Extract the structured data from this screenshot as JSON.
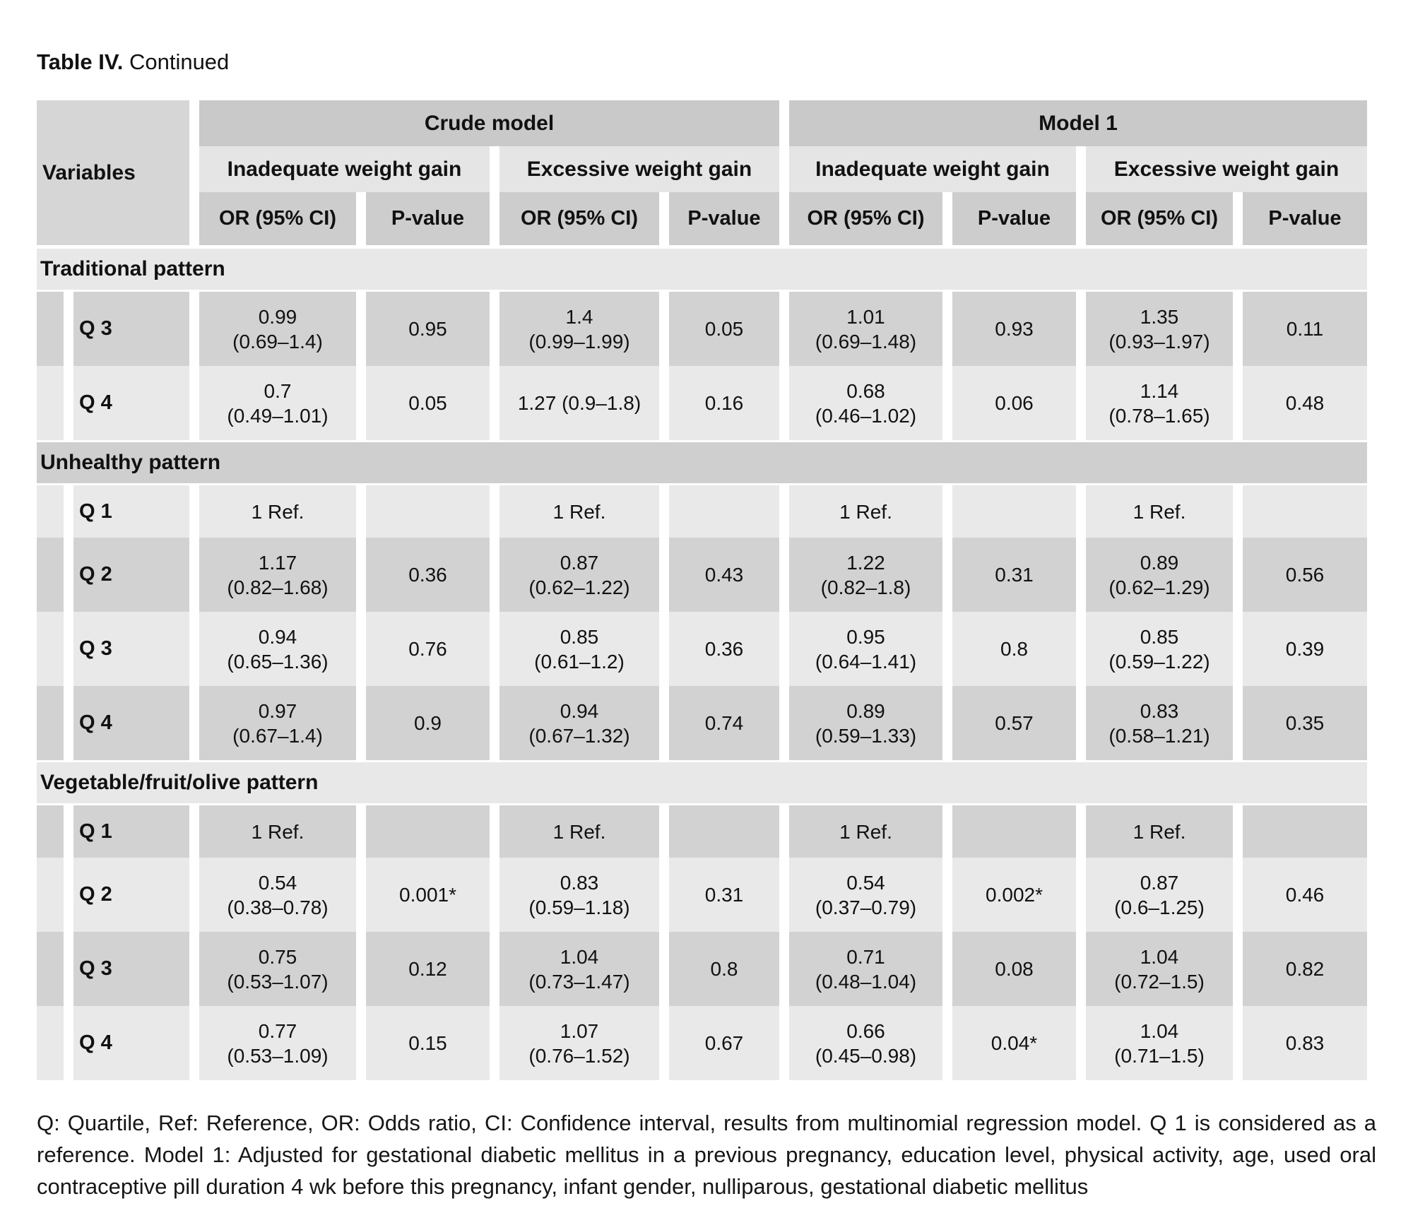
{
  "title": {
    "label": "Table IV.",
    "suffix": " Continued"
  },
  "header": {
    "variables": "Variables",
    "models": [
      "Crude model",
      "Model 1"
    ],
    "subgroups": [
      "Inadequate weight gain",
      "Excessive weight gain",
      "Inadequate weight gain",
      "Excessive weight gain"
    ],
    "measures": [
      "OR (95% CI)",
      "P-value",
      "OR (95% CI)",
      "P-value",
      "OR (95% CI)",
      "P-value",
      "OR (95% CI)",
      "P-value"
    ]
  },
  "sections": [
    {
      "label": "Traditional pattern",
      "shade": "light",
      "rows": [
        {
          "label": "Q 3",
          "shade": "dark",
          "cells": [
            "0.99\n(0.69–1.4)",
            "0.95",
            "1.4\n(0.99–1.99)",
            "0.05",
            "1.01\n(0.69–1.48)",
            "0.93",
            "1.35\n(0.93–1.97)",
            "0.11"
          ]
        },
        {
          "label": "Q 4",
          "shade": "light",
          "cells": [
            "0.7\n(0.49–1.01)",
            "0.05",
            "1.27 (0.9–1.8)",
            "0.16",
            "0.68\n(0.46–1.02)",
            "0.06",
            "1.14\n(0.78–1.65)",
            "0.48"
          ]
        }
      ]
    },
    {
      "label": "Unhealthy pattern",
      "shade": "dark",
      "rows": [
        {
          "label": "Q 1",
          "shade": "light",
          "cells": [
            "1 Ref.",
            "",
            "1 Ref.",
            "",
            "1 Ref.",
            "",
            "1 Ref.",
            ""
          ]
        },
        {
          "label": "Q 2",
          "shade": "dark",
          "cells": [
            "1.17\n(0.82–1.68)",
            "0.36",
            "0.87\n(0.62–1.22)",
            "0.43",
            "1.22\n(0.82–1.8)",
            "0.31",
            "0.89\n(0.62–1.29)",
            "0.56"
          ]
        },
        {
          "label": "Q 3",
          "shade": "light",
          "cells": [
            "0.94\n(0.65–1.36)",
            "0.76",
            "0.85\n(0.61–1.2)",
            "0.36",
            "0.95\n(0.64–1.41)",
            "0.8",
            "0.85\n(0.59–1.22)",
            "0.39"
          ]
        },
        {
          "label": "Q 4",
          "shade": "dark",
          "cells": [
            "0.97\n(0.67–1.4)",
            "0.9",
            "0.94\n(0.67–1.32)",
            "0.74",
            "0.89\n(0.59–1.33)",
            "0.57",
            "0.83\n(0.58–1.21)",
            "0.35"
          ]
        }
      ]
    },
    {
      "label": "Vegetable/fruit/olive pattern",
      "shade": "light",
      "rows": [
        {
          "label": "Q 1",
          "shade": "dark",
          "cells": [
            "1 Ref.",
            "",
            "1 Ref.",
            "",
            "1 Ref.",
            "",
            "1 Ref.",
            ""
          ]
        },
        {
          "label": "Q 2",
          "shade": "light",
          "cells": [
            "0.54\n(0.38–0.78)",
            "0.001*",
            "0.83\n(0.59–1.18)",
            "0.31",
            "0.54\n(0.37–0.79)",
            "0.002*",
            "0.87\n(0.6–1.25)",
            "0.46"
          ]
        },
        {
          "label": "Q 3",
          "shade": "dark",
          "cells": [
            "0.75\n(0.53–1.07)",
            "0.12",
            "1.04\n(0.73–1.47)",
            "0.8",
            "0.71\n(0.48–1.04)",
            "0.08",
            "1.04\n(0.72–1.5)",
            "0.82"
          ]
        },
        {
          "label": "Q 4",
          "shade": "light",
          "cells": [
            "0.77\n(0.53–1.09)",
            "0.15",
            "1.07\n(0.76–1.52)",
            "0.67",
            "0.66\n(0.45–0.98)",
            "0.04*",
            "1.04\n(0.71–1.5)",
            "0.83"
          ]
        }
      ]
    }
  ],
  "footnote": "Q: Quartile, Ref: Reference, OR: Odds ratio, CI: Confidence interval, results from multinomial regression model. Q 1 is considered as a reference. Model 1: Adjusted for gestational diabetic mellitus in a previous pregnancy, education level, physical activity, age, used oral contraceptive pill duration 4 wk before this pregnancy, infant gender, nulliparous, gestational diabetic mellitus",
  "colors": {
    "model_band": "#c9c9c9",
    "subgroup_band": "#e5e5e5",
    "measure_band": "#cdcdcd",
    "variables_cell": "#d6d6d6",
    "section_band_light": "#e8e8e8",
    "section_band_dark": "#cfcfcf",
    "row_dark": "#d2d2d2",
    "row_light": "#e9e9e9"
  }
}
